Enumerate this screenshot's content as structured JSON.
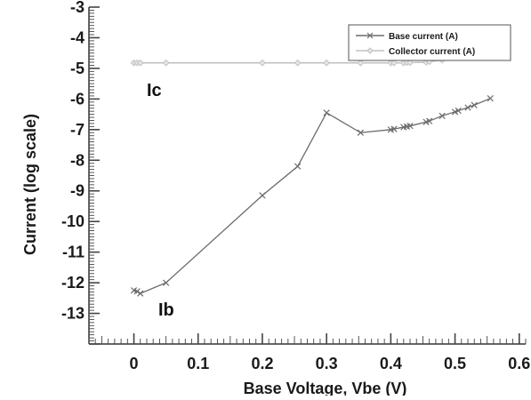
{
  "chart_data": {
    "type": "line",
    "xlabel": "Base Voltage, Vbe (V)",
    "ylabel": "Current (log scale)",
    "xlim": [
      -0.07,
      0.61
    ],
    "ylim": [
      -14.0,
      -3.0
    ],
    "x_ticks": [
      0,
      0.1,
      0.2,
      0.3,
      0.4,
      0.5,
      0.6
    ],
    "x_tick_labels": [
      "0",
      "0.1",
      "0.2",
      "0.3",
      "0.4",
      "0.5",
      "0.6"
    ],
    "y_ticks": [
      -3,
      -4,
      -5,
      -6,
      -7,
      -8,
      -9,
      -10,
      -11,
      -12,
      -13
    ],
    "y_tick_labels": [
      "-3",
      "-4",
      "-5",
      "-6",
      "-7",
      "-8",
      "-9",
      "-10",
      "-11",
      "-12",
      "-13"
    ],
    "grid": false,
    "legend_position": "top-right",
    "annotations": [
      "Ic",
      "Ib"
    ],
    "series": [
      {
        "name": "Base current (A)",
        "color": "#6b6b6b",
        "marker": "x",
        "x": [
          0.0,
          0.005,
          0.01,
          0.05,
          0.2,
          0.255,
          0.3,
          0.353,
          0.4,
          0.405,
          0.42,
          0.425,
          0.43,
          0.455,
          0.46,
          0.48,
          0.5,
          0.505,
          0.52,
          0.53,
          0.555
        ],
        "y": [
          -12.25,
          -12.28,
          -12.35,
          -12.0,
          -9.15,
          -8.2,
          -6.45,
          -7.1,
          -7.0,
          -6.98,
          -6.92,
          -6.9,
          -6.88,
          -6.75,
          -6.72,
          -6.55,
          -6.42,
          -6.38,
          -6.28,
          -6.2,
          -5.98
        ]
      },
      {
        "name": "Collector current (A)",
        "color": "#c2c2c2",
        "marker": "diamond",
        "x": [
          0.0,
          0.005,
          0.01,
          0.05,
          0.2,
          0.255,
          0.3,
          0.353,
          0.4,
          0.405,
          0.42,
          0.425,
          0.43,
          0.455,
          0.46,
          0.48,
          0.5,
          0.505,
          0.52,
          0.53
        ],
        "y": [
          -4.82,
          -4.82,
          -4.82,
          -4.82,
          -4.82,
          -4.82,
          -4.82,
          -4.82,
          -4.82,
          -4.82,
          -4.82,
          -4.81,
          -4.81,
          -4.8,
          -4.78,
          -4.73,
          -4.65,
          -4.62,
          -4.55,
          -4.5
        ]
      }
    ]
  }
}
